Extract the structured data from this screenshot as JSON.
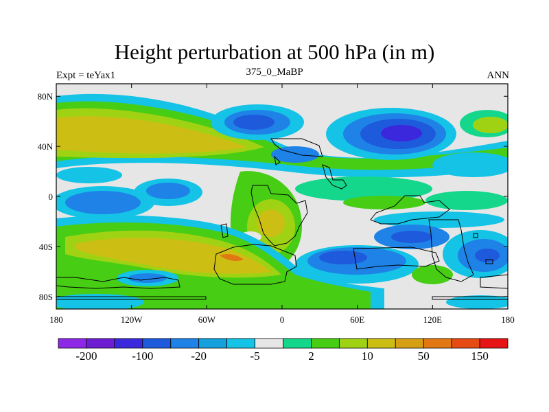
{
  "chart_data": {
    "type": "heatmap",
    "title": "Height perturbation at 500 hPa (in m)",
    "left_subtitle": "Expt = teYax1",
    "center_subtitle": "375_0_MaBP",
    "right_subtitle": "ANN",
    "x_ticks": [
      "180",
      "120W",
      "60W",
      "0",
      "60E",
      "120E",
      "180"
    ],
    "y_ticks": [
      "80N",
      "40N",
      "0",
      "40S",
      "80S"
    ],
    "colorbar_labels": [
      "-200",
      "-100",
      "-20",
      "-5",
      "2",
      "10",
      "50",
      "150"
    ],
    "colorbar_colors": [
      "#8c28e6",
      "#6e1ed2",
      "#3c28dc",
      "#1e5adc",
      "#1e82e6",
      "#14a0dc",
      "#14c3e6",
      "#e6e6e6",
      "#14d78c",
      "#46cd14",
      "#a0d214",
      "#cdbe14",
      "#d7a014",
      "#e17814",
      "#e64b14",
      "#e61414"
    ]
  }
}
